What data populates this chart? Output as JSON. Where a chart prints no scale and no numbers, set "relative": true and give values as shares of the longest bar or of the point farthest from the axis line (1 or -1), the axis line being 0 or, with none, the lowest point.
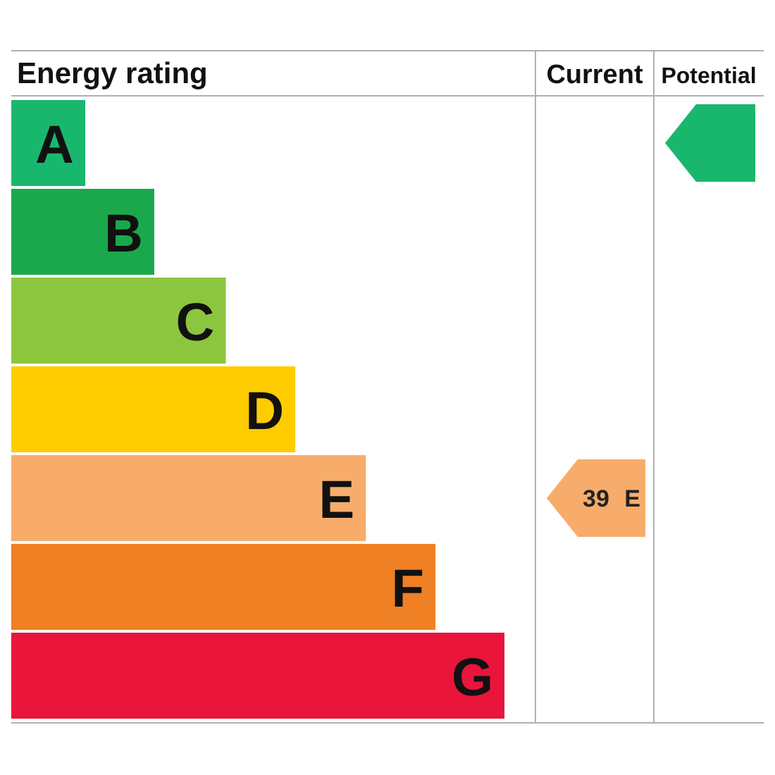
{
  "chart_data": {
    "type": "bar",
    "orientation": "horizontal",
    "relative": true,
    "title": "Energy rating",
    "categories": [
      "A",
      "B",
      "C",
      "D",
      "E",
      "F",
      "G"
    ],
    "values": [
      0.15,
      0.29,
      0.435,
      0.576,
      0.719,
      0.86,
      1
    ],
    "colors": [
      "#19b76e",
      "#1ba84c",
      "#8cc63f",
      "#ffcc00",
      "#f7ac6b",
      "#ef8023",
      "#e9153b"
    ],
    "annotations": [
      "Current",
      "Potential",
      "39 E"
    ]
  }
}
